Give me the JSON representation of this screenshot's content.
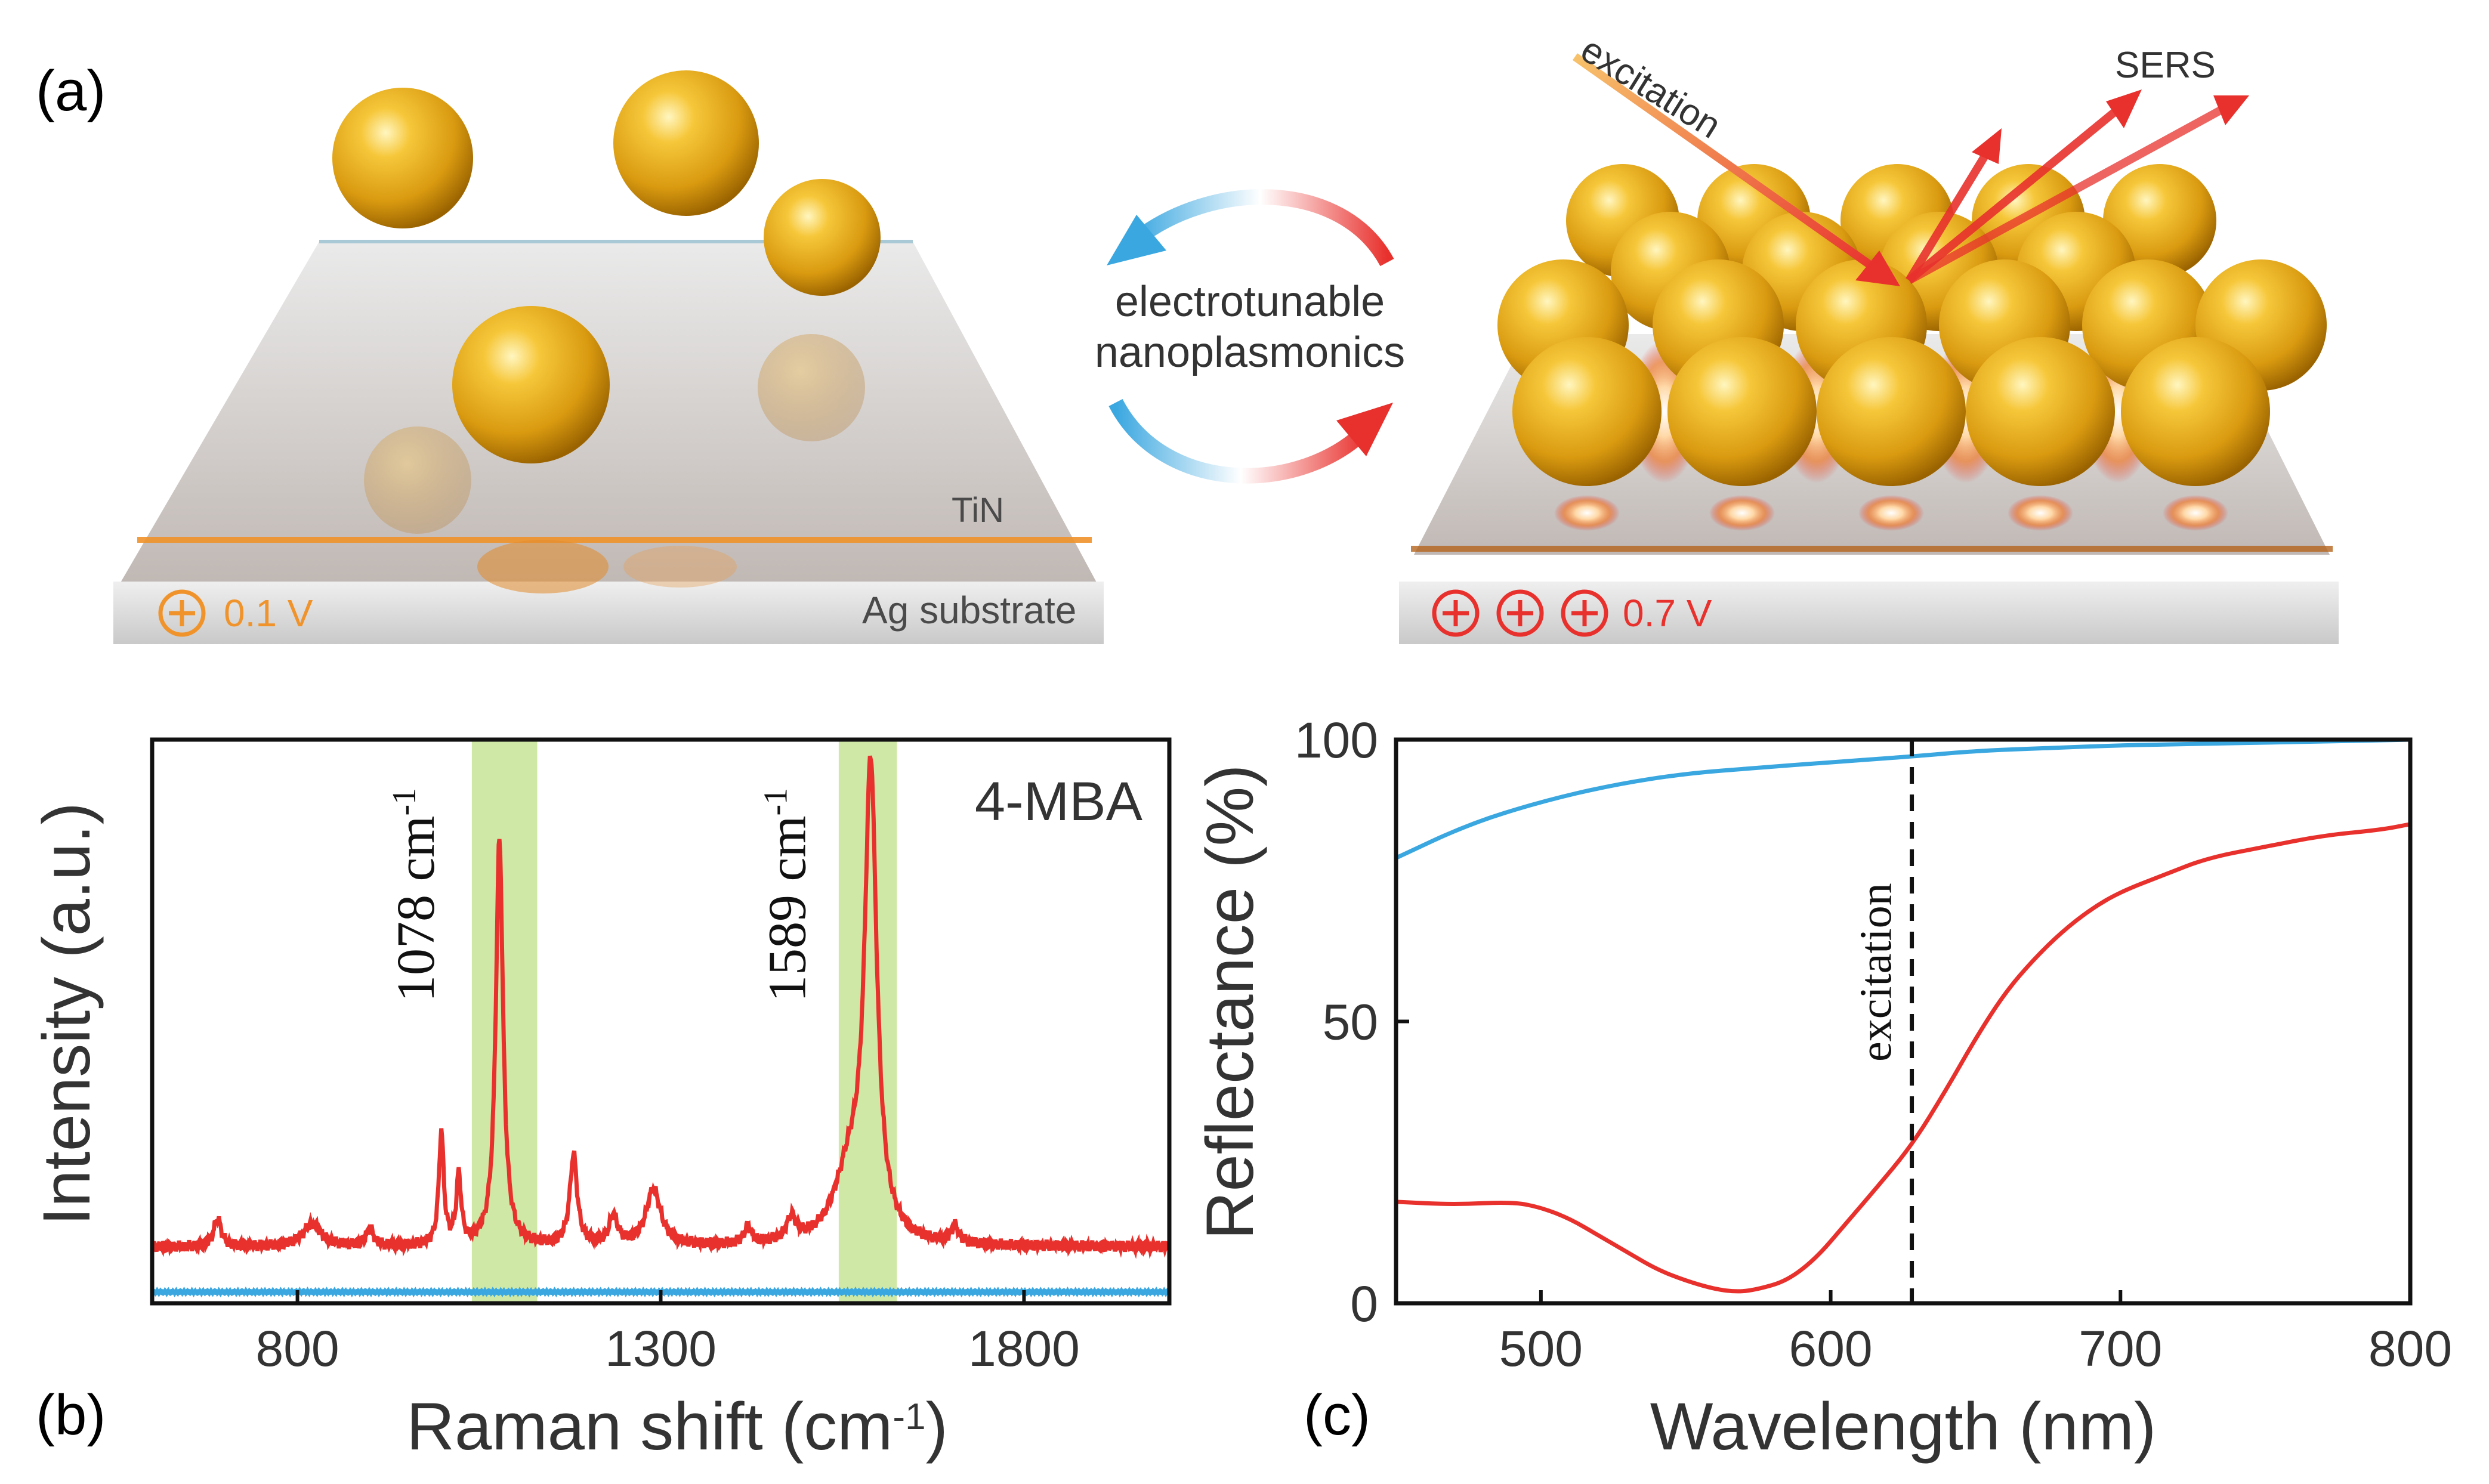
{
  "panel_a": {
    "letter": "(a)",
    "center_label_line1": "electrotunable",
    "center_label_line2": "nanoplasmonics",
    "left_scene": {
      "layer_label": "TiN",
      "substrate_label": "Ag substrate",
      "voltage_label": "0.1 V",
      "plus_count": 1,
      "voltage_color": "#f0932b"
    },
    "right_scene": {
      "excitation_label": "excitation",
      "sers_label": "SERS",
      "voltage_label": "0.7 V",
      "plus_count": 3,
      "voltage_color": "#e8312d"
    }
  },
  "panel_b": {
    "letter": "(b)",
    "chart_data": {
      "type": "line",
      "xlabel_main": "Raman shift (cm",
      "xlabel_sup": "-1",
      "xlabel_end": ")",
      "ylabel": "Intensity (a.u.)",
      "xlim": [
        600,
        2000
      ],
      "ylim": [
        0,
        1
      ],
      "xticks": [
        800,
        1300,
        1800
      ],
      "annotation": "4-MBA",
      "highlight_bands": [
        {
          "from": 1040,
          "to": 1130,
          "color": "#cfe8a6"
        },
        {
          "from": 1545,
          "to": 1625,
          "color": "#cfe8a6"
        }
      ],
      "peak_labels": [
        {
          "x": 1078,
          "text": "1078 cm",
          "sup": "-1"
        },
        {
          "x": 1589,
          "text": "1589 cm",
          "sup": "-1"
        }
      ],
      "series": [
        {
          "color": "#e8312d",
          "baseline": 0.1,
          "peaks": [
            {
              "x": 690,
              "h": 0.05,
              "w": 6
            },
            {
              "x": 820,
              "h": 0.04,
              "w": 15
            },
            {
              "x": 900,
              "h": 0.03,
              "w": 6
            },
            {
              "x": 998,
              "h": 0.2,
              "w": 4
            },
            {
              "x": 1022,
              "h": 0.12,
              "w": 4
            },
            {
              "x": 1078,
              "h": 0.72,
              "w": 6
            },
            {
              "x": 1180,
              "h": 0.16,
              "w": 6
            },
            {
              "x": 1235,
              "h": 0.05,
              "w": 7
            },
            {
              "x": 1290,
              "h": 0.1,
              "w": 12
            },
            {
              "x": 1420,
              "h": 0.03,
              "w": 6
            },
            {
              "x": 1480,
              "h": 0.04,
              "w": 8
            },
            {
              "x": 1589,
              "h": 0.82,
              "w": 10
            },
            {
              "x": 1560,
              "h": 0.12,
              "w": 25
            },
            {
              "x": 1705,
              "h": 0.03,
              "w": 6
            }
          ]
        },
        {
          "color": "#3aa7e0",
          "baseline": 0.02,
          "peaks": []
        }
      ]
    }
  },
  "panel_c": {
    "letter": "(c)",
    "chart_data": {
      "type": "line",
      "xlabel": "Wavelength (nm)",
      "ylabel": "Reflectance (%)",
      "xlim": [
        450,
        800
      ],
      "ylim": [
        0,
        100
      ],
      "xticks": [
        500,
        600,
        700,
        800
      ],
      "yticks": [
        0,
        50,
        100
      ],
      "vline": {
        "x": 628,
        "label": "excitation"
      },
      "series": [
        {
          "color": "#3aa7e0",
          "x": [
            450,
            475,
            500,
            525,
            550,
            575,
            600,
            628,
            650,
            675,
            700,
            725,
            750,
            775,
            800
          ],
          "y": [
            79,
            85,
            89,
            92,
            94,
            95,
            96,
            97,
            98,
            98.5,
            99,
            99.2,
            99.5,
            99.7,
            100
          ]
        },
        {
          "color": "#e8312d",
          "x": [
            450,
            470,
            490,
            500,
            510,
            520,
            530,
            540,
            550,
            560,
            568,
            575,
            585,
            595,
            605,
            615,
            628,
            640,
            650,
            660,
            670,
            680,
            690,
            700,
            715,
            730,
            750,
            770,
            790,
            800
          ],
          "y": [
            18,
            17.5,
            18,
            17,
            15,
            12,
            9,
            6,
            4,
            2.5,
            2,
            2.5,
            4,
            8,
            14,
            20,
            28,
            38,
            47,
            55,
            61,
            66,
            70,
            73,
            76,
            79,
            81,
            83,
            84,
            85
          ]
        }
      ]
    }
  }
}
